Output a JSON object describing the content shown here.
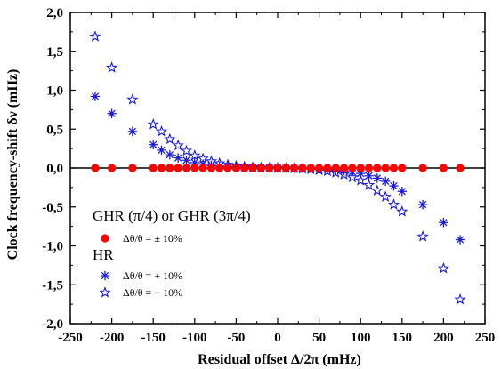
{
  "chart_data": {
    "type": "scatter",
    "xlabel": "Residual offset Δ/2π (mHz)",
    "ylabel": "Clock frequency-shift δν (mHz)",
    "xlim": [
      -250,
      250
    ],
    "ylim": [
      -2.0,
      2.0
    ],
    "x_ticks": [
      -250,
      -200,
      -150,
      -100,
      -50,
      0,
      50,
      100,
      150,
      200,
      250
    ],
    "x_tick_labels": [
      "-250",
      "-200",
      "-150",
      "-100",
      "-50",
      "0",
      "50",
      "100",
      "150",
      "200",
      "250"
    ],
    "y_ticks": [
      2.0,
      1.5,
      1.0,
      0.5,
      0.0,
      -0.5,
      -1.0,
      -1.5,
      -2.0
    ],
    "y_tick_labels": [
      "2,0",
      "1,5",
      "1,0",
      "0,5",
      "0,0",
      "-0,5",
      "-1,0",
      "-1,5",
      "-2,0"
    ],
    "zero_line": true,
    "grid": false,
    "legend_placement": "bottom-left",
    "legend": {
      "group1_title": "GHR (π/4) or GHR (3π/4)",
      "group2_title": "HR"
    },
    "series": [
      {
        "name": "Δθ/θ = ± 10%",
        "group": "GHR (π/4) or GHR (3π/4)",
        "marker": "circle",
        "color": "#ff0000",
        "x": [
          -220,
          -200,
          -175,
          -150,
          -140,
          -130,
          -120,
          -110,
          -100,
          -90,
          -80,
          -70,
          -60,
          -50,
          -40,
          -30,
          -20,
          -10,
          0,
          10,
          20,
          30,
          40,
          50,
          60,
          70,
          80,
          90,
          100,
          110,
          120,
          130,
          140,
          150,
          175,
          200,
          220
        ],
        "y": [
          0,
          0,
          0,
          0,
          0,
          0,
          0,
          0,
          0,
          0,
          0,
          0,
          0,
          0,
          0,
          0,
          0,
          0,
          0,
          0,
          0,
          0,
          0,
          0,
          0,
          0,
          0,
          0,
          0,
          0,
          0,
          0,
          0,
          0,
          0,
          0,
          0
        ]
      },
      {
        "name": "Δθ/θ = + 10%",
        "group": "HR",
        "marker": "asterisk",
        "color": "#1a1adc",
        "x": [
          -220,
          -200,
          -175,
          -150,
          -140,
          -130,
          -120,
          -110,
          -100,
          -90,
          -80,
          -70,
          -60,
          -50,
          -40,
          -30,
          -20,
          -10,
          0,
          10,
          20,
          30,
          40,
          50,
          60,
          70,
          80,
          90,
          100,
          110,
          120,
          130,
          140,
          150,
          175,
          200,
          220
        ],
        "y": [
          0.92,
          0.7,
          0.47,
          0.3,
          0.23,
          0.17,
          0.13,
          0.1,
          0.07,
          0.05,
          0.035,
          0.025,
          0.018,
          0.012,
          0.008,
          0.005,
          0.003,
          0.001,
          0,
          -0.001,
          -0.003,
          -0.005,
          -0.008,
          -0.012,
          -0.018,
          -0.025,
          -0.035,
          -0.05,
          -0.07,
          -0.1,
          -0.13,
          -0.17,
          -0.23,
          -0.3,
          -0.47,
          -0.7,
          -0.92
        ]
      },
      {
        "name": "Δθ/θ = − 10%",
        "group": "HR",
        "marker": "star",
        "color": "#1a1adc",
        "x": [
          -220,
          -200,
          -175,
          -150,
          -140,
          -130,
          -120,
          -110,
          -100,
          -90,
          -80,
          -70,
          -60,
          -50,
          -40,
          -30,
          -20,
          -10,
          0,
          10,
          20,
          30,
          40,
          50,
          60,
          70,
          80,
          90,
          100,
          110,
          120,
          130,
          140,
          150,
          175,
          200,
          220
        ],
        "y": [
          1.69,
          1.29,
          0.88,
          0.56,
          0.47,
          0.37,
          0.29,
          0.22,
          0.16,
          0.12,
          0.085,
          0.06,
          0.04,
          0.027,
          0.017,
          0.01,
          0.005,
          0.002,
          0,
          -0.002,
          -0.005,
          -0.01,
          -0.017,
          -0.027,
          -0.04,
          -0.06,
          -0.085,
          -0.12,
          -0.16,
          -0.22,
          -0.29,
          -0.37,
          -0.47,
          -0.56,
          -0.88,
          -1.29,
          -1.69
        ]
      }
    ]
  }
}
